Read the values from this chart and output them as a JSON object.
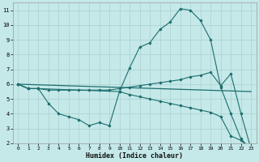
{
  "xlabel": "Humidex (Indice chaleur)",
  "background_color": "#c5e8e8",
  "grid_color": "#afd4d4",
  "line_color": "#1d6e6e",
  "xlim": [
    -0.5,
    23.5
  ],
  "ylim": [
    2,
    11.5
  ],
  "x_ticks": [
    0,
    1,
    2,
    3,
    4,
    5,
    6,
    7,
    8,
    9,
    10,
    11,
    12,
    13,
    14,
    15,
    16,
    17,
    18,
    19,
    20,
    21,
    22,
    23
  ],
  "y_ticks": [
    2,
    3,
    4,
    5,
    6,
    7,
    8,
    9,
    10,
    11
  ],
  "line1_x": [
    0,
    23
  ],
  "line1_y": [
    6.0,
    5.5
  ],
  "line2_x": [
    0,
    1,
    2,
    3,
    4,
    5,
    6,
    7,
    8,
    9,
    10,
    11,
    12,
    13,
    14,
    15,
    16,
    17,
    18,
    19,
    20,
    21,
    22,
    23
  ],
  "line2_y": [
    6.0,
    5.7,
    5.7,
    5.6,
    5.6,
    5.6,
    5.6,
    5.6,
    5.6,
    5.6,
    5.7,
    5.8,
    5.9,
    6.0,
    6.1,
    6.2,
    6.3,
    6.5,
    6.6,
    6.8,
    5.9,
    6.7,
    4.0,
    1.6
  ],
  "line3_x": [
    0,
    1,
    2,
    3,
    4,
    5,
    6,
    7,
    8,
    9,
    10,
    11,
    12,
    13,
    14,
    15,
    16,
    17,
    18,
    19,
    20,
    21,
    22,
    23
  ],
  "line3_y": [
    6.0,
    5.7,
    5.7,
    4.7,
    4.0,
    3.8,
    3.6,
    3.2,
    3.4,
    3.2,
    5.5,
    5.3,
    5.15,
    5.0,
    4.85,
    4.7,
    4.55,
    4.4,
    4.25,
    4.1,
    3.8,
    2.5,
    2.2,
    1.6
  ],
  "line4_x": [
    0,
    1,
    2,
    10,
    11,
    12,
    13,
    14,
    15,
    16,
    17,
    18,
    19,
    20,
    21,
    22,
    23
  ],
  "line4_y": [
    6.0,
    5.7,
    5.7,
    5.5,
    7.1,
    8.5,
    8.8,
    9.7,
    10.2,
    11.1,
    11.0,
    10.3,
    9.0,
    5.8,
    4.0,
    2.3,
    1.6
  ]
}
